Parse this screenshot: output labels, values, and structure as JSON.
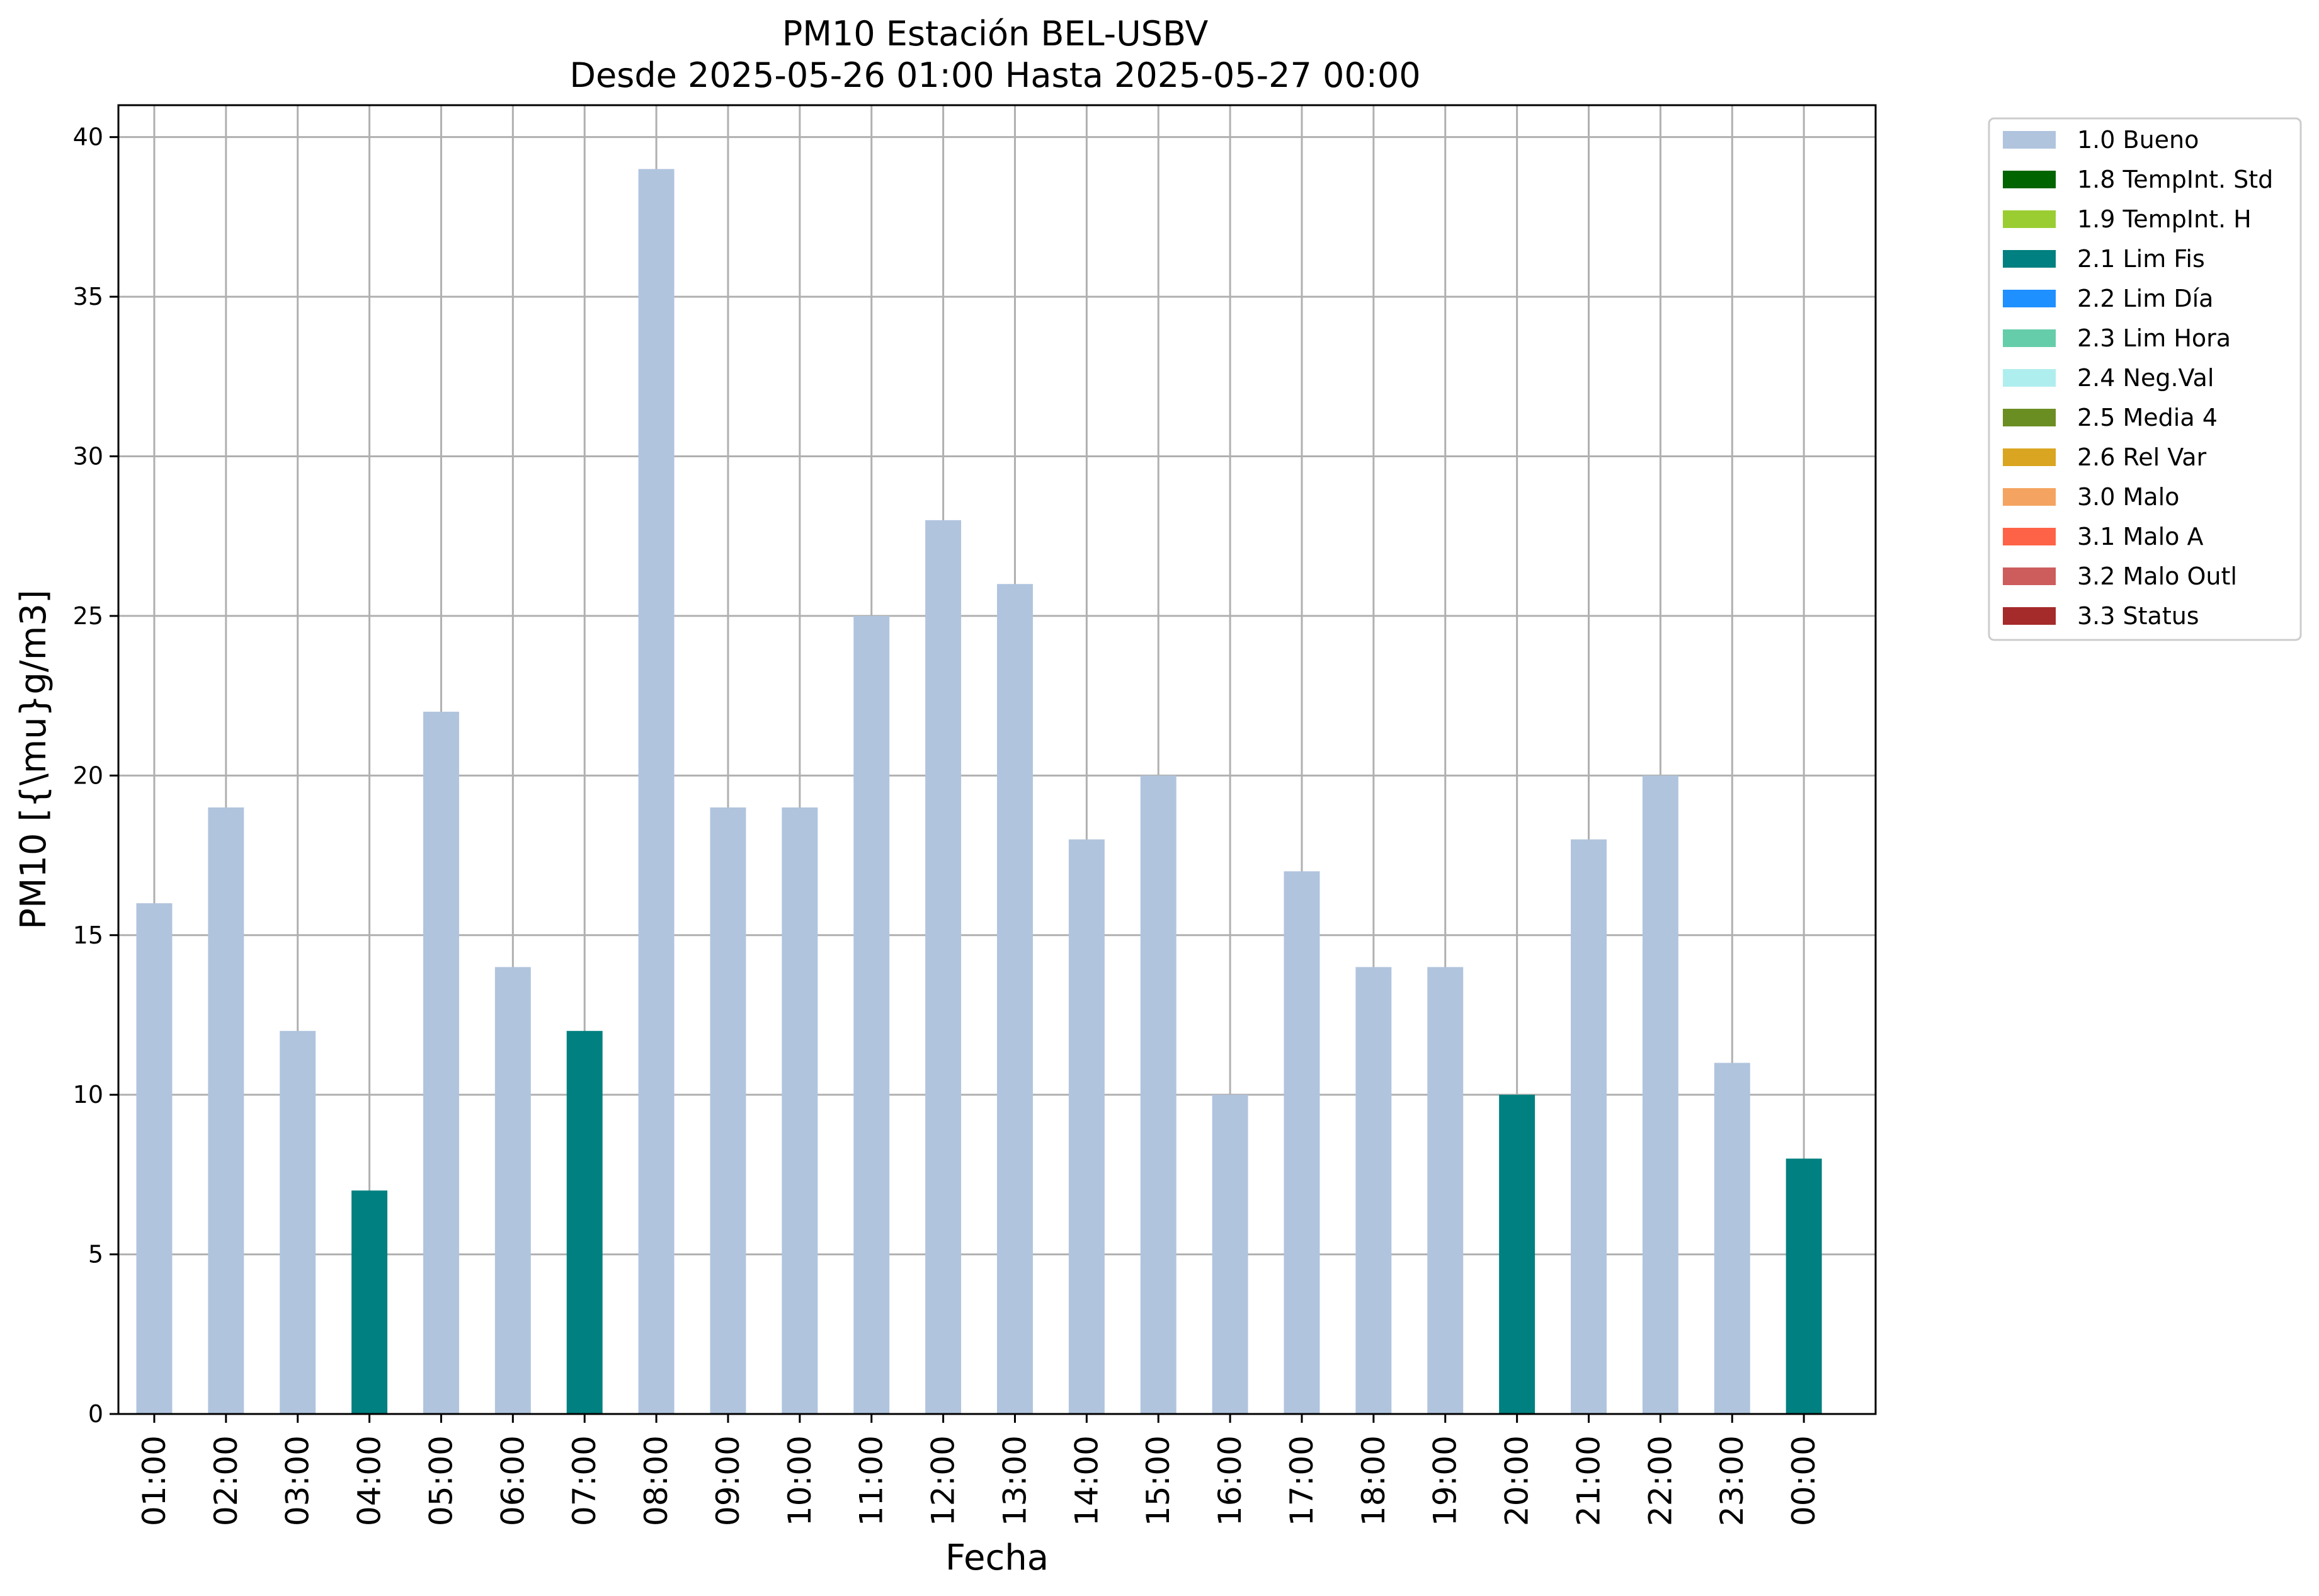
{
  "chart_data": {
    "type": "bar",
    "title": "PM10 Estación BEL-USBV",
    "subtitle": "Desde 2025-05-26 01:00 Hasta 2025-05-27 00:00",
    "xlabel": "Fecha",
    "ylabel": "PM10 [{\\mu}g/m3]",
    "ylim": [
      0,
      41
    ],
    "yticks": [
      0,
      5,
      10,
      15,
      20,
      25,
      30,
      35,
      40
    ],
    "grid": true,
    "legend_position": "outside-top-right",
    "categories": [
      "01:00",
      "02:00",
      "03:00",
      "04:00",
      "05:00",
      "06:00",
      "07:00",
      "08:00",
      "09:00",
      "10:00",
      "11:00",
      "12:00",
      "13:00",
      "14:00",
      "15:00",
      "16:00",
      "17:00",
      "18:00",
      "19:00",
      "20:00",
      "21:00",
      "22:00",
      "23:00",
      "00:00"
    ],
    "values": [
      16,
      19,
      12,
      7,
      22,
      14,
      12,
      39,
      19,
      19,
      25,
      28,
      26,
      18,
      20,
      10,
      17,
      14,
      14,
      10,
      18,
      20,
      11,
      8
    ],
    "flags": [
      "1.0 Bueno",
      "1.0 Bueno",
      "1.0 Bueno",
      "2.1 Lim Fis",
      "1.0 Bueno",
      "1.0 Bueno",
      "2.1 Lim Fis",
      "1.0 Bueno",
      "1.0 Bueno",
      "1.0 Bueno",
      "1.0 Bueno",
      "1.0 Bueno",
      "1.0 Bueno",
      "1.0 Bueno",
      "1.0 Bueno",
      "1.0 Bueno",
      "1.0 Bueno",
      "1.0 Bueno",
      "1.0 Bueno",
      "2.1 Lim Fis",
      "1.0 Bueno",
      "1.0 Bueno",
      "1.0 Bueno",
      "2.1 Lim Fis"
    ],
    "legend": [
      {
        "name": "1.0 Bueno",
        "color": "#b0c4de"
      },
      {
        "name": "1.8 TempInt. Std",
        "color": "#006400"
      },
      {
        "name": "1.9 TempInt. H",
        "color": "#9acd32"
      },
      {
        "name": "2.1 Lim Fis",
        "color": "#008080"
      },
      {
        "name": "2.2 Lim Día",
        "color": "#1e90ff"
      },
      {
        "name": "2.3 Lim Hora",
        "color": "#66cdaa"
      },
      {
        "name": "2.4 Neg.Val",
        "color": "#afeeee"
      },
      {
        "name": "2.5 Media 4",
        "color": "#6b8e23"
      },
      {
        "name": "2.6 Rel Var",
        "color": "#daa520"
      },
      {
        "name": "3.0 Malo",
        "color": "#f4a460"
      },
      {
        "name": "3.1 Malo A",
        "color": "#ff6347"
      },
      {
        "name": "3.2 Malo Outl",
        "color": "#cd5c5c"
      },
      {
        "name": "3.3 Status",
        "color": "#a52a2a"
      }
    ]
  }
}
